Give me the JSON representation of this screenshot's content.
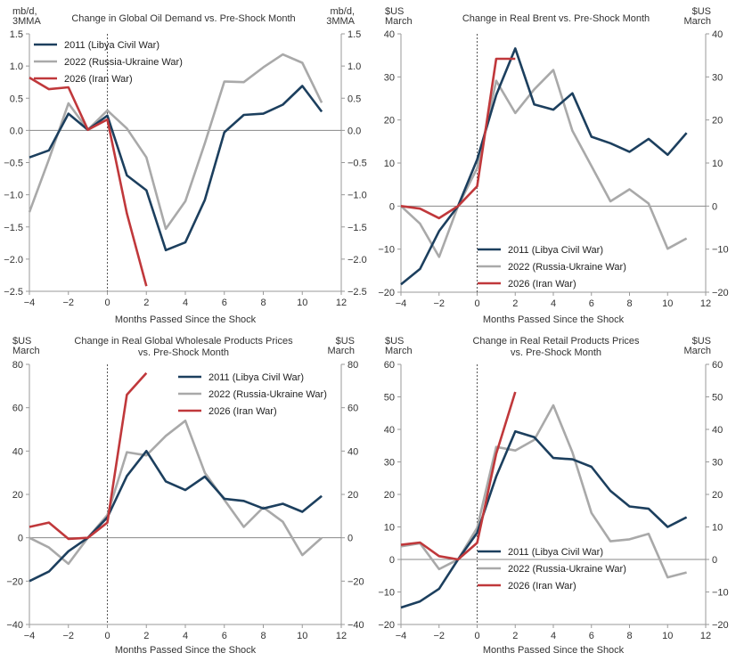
{
  "colors": {
    "s2011": "#1c3f5e",
    "s2022": "#a9a9a9",
    "s2026": "#c0383b",
    "axis": "#9a9a9a",
    "zero": "#888888",
    "shock": "#444444"
  },
  "chart_data": [
    {
      "type": "line",
      "title": [
        "Change in Global Oil Demand vs. Pre-Shock Month"
      ],
      "ylabel_left": [
        "mb/d,",
        "3MMA"
      ],
      "ylabel_right": [
        "mb/d,",
        "3MMA"
      ],
      "xlabel": "Months Passed Since the Shock",
      "xlim": [
        -4,
        12
      ],
      "ylim": [
        -2.5,
        1.5
      ],
      "xticks": [
        -4,
        -2,
        0,
        2,
        4,
        6,
        8,
        10,
        12
      ],
      "xtick_labels": [
        "−4",
        "−2",
        "0",
        "2",
        "4",
        "6",
        "8",
        "10",
        "12"
      ],
      "yticks": [
        -2.5,
        -2.0,
        -1.5,
        -1.0,
        -0.5,
        0.0,
        0.5,
        1.0,
        1.5
      ],
      "ytick_labels": [
        "−2.5",
        "−2.0",
        "−1.5",
        "−1.0",
        "−0.5",
        "0.0",
        "0.5",
        "1.0",
        "1.5"
      ],
      "legend_position": "top-left",
      "series": [
        {
          "name": "2011 (Libya Civil War)",
          "color_key": "s2011",
          "x": [
            -4,
            -3,
            -2,
            -1,
            0,
            1,
            2,
            3,
            4,
            5,
            6,
            7,
            8,
            9,
            10,
            11
          ],
          "values": [
            -0.42,
            -0.31,
            0.26,
            0.01,
            0.23,
            -0.7,
            -0.93,
            -1.86,
            -1.74,
            -1.08,
            -0.03,
            0.24,
            0.26,
            0.4,
            0.69,
            0.29
          ]
        },
        {
          "name": "2022 (Russia-Ukraine War)",
          "color_key": "s2022",
          "x": [
            -4,
            -3,
            -2,
            -1,
            0,
            1,
            2,
            3,
            4,
            5,
            6,
            7,
            8,
            9,
            10,
            11
          ],
          "values": [
            -1.27,
            -0.45,
            0.42,
            0.01,
            0.31,
            0.03,
            -0.42,
            -1.53,
            -1.1,
            -0.2,
            0.76,
            0.75,
            0.98,
            1.18,
            1.05,
            0.43
          ]
        },
        {
          "name": "2026 (Iran War)",
          "color_key": "s2026",
          "x": [
            -4,
            -3,
            -2,
            -1,
            0,
            1,
            2
          ],
          "values": [
            0.82,
            0.64,
            0.67,
            0.01,
            0.17,
            -1.29,
            -2.42
          ]
        }
      ]
    },
    {
      "type": "line",
      "title": [
        "Change in Real Brent vs. Pre-Shock Month"
      ],
      "ylabel_left": [
        "$US",
        "March"
      ],
      "ylabel_right": [
        "$US",
        "March"
      ],
      "xlabel": "Months Passed Since the Shock",
      "xlim": [
        -4,
        12
      ],
      "ylim": [
        -20,
        40
      ],
      "xticks": [
        -4,
        -2,
        0,
        2,
        4,
        6,
        8,
        10,
        12
      ],
      "xtick_labels": [
        "−4",
        "−2",
        "0",
        "2",
        "4",
        "6",
        "8",
        "10",
        "12"
      ],
      "yticks": [
        -20,
        -10,
        0,
        10,
        20,
        30,
        40
      ],
      "ytick_labels": [
        "−20",
        "−10",
        "0",
        "10",
        "20",
        "30",
        "40"
      ],
      "legend_position": "bottom-center",
      "series": [
        {
          "name": "2011 (Libya Civil War)",
          "color_key": "s2011",
          "x": [
            -4,
            -3,
            -2,
            -1,
            0,
            1,
            2,
            3,
            4,
            5,
            6,
            7,
            8,
            9,
            10,
            11
          ],
          "values": [
            -18.2,
            -14.6,
            -5.8,
            0.0,
            10.8,
            25.8,
            36.6,
            23.6,
            22.4,
            26.2,
            16.1,
            14.6,
            12.6,
            15.6,
            11.9,
            17.0
          ]
        },
        {
          "name": "2022 (Russia-Ukraine War)",
          "color_key": "s2022",
          "x": [
            -4,
            -3,
            -2,
            -1,
            0,
            1,
            2,
            3,
            4,
            5,
            6,
            7,
            8,
            9,
            10,
            11
          ],
          "values": [
            0.0,
            -4.1,
            -11.8,
            0.0,
            8.8,
            29.1,
            21.6,
            27.1,
            31.6,
            17.5,
            9.3,
            1.1,
            3.9,
            0.6,
            -9.9,
            -7.5
          ]
        },
        {
          "name": "2026 (Iran War)",
          "color_key": "s2026",
          "x": [
            -4,
            -3,
            -2,
            -1,
            0,
            1,
            2
          ],
          "values": [
            0.0,
            -0.6,
            -2.8,
            0.0,
            4.6,
            34.2,
            34.2
          ]
        }
      ]
    },
    {
      "type": "line",
      "title": [
        "Change in Real Global Wholesale Products Prices",
        "vs. Pre-Shock Month"
      ],
      "ylabel_left": [
        "$US",
        "March"
      ],
      "ylabel_right": [
        "$US",
        "March"
      ],
      "xlabel": "Months Passed Since the Shock",
      "xlim": [
        -4,
        12
      ],
      "ylim": [
        -40,
        80
      ],
      "xticks": [
        -4,
        -2,
        0,
        2,
        4,
        6,
        8,
        10,
        12
      ],
      "xtick_labels": [
        "−4",
        "−2",
        "0",
        "2",
        "4",
        "6",
        "8",
        "10",
        "12"
      ],
      "yticks": [
        -40,
        -20,
        0,
        20,
        40,
        60,
        80
      ],
      "ytick_labels": [
        "−40",
        "−20",
        "0",
        "20",
        "40",
        "60",
        "80"
      ],
      "legend_position": "top-right",
      "series": [
        {
          "name": "2011 (Libya Civil War)",
          "color_key": "s2011",
          "x": [
            -4,
            -3,
            -2,
            -1,
            0,
            1,
            2,
            3,
            4,
            5,
            6,
            7,
            8,
            9,
            10,
            11
          ],
          "values": [
            -20.0,
            -15.6,
            -6.2,
            0.0,
            9.4,
            28.5,
            40.0,
            26.0,
            22.0,
            28.2,
            18.0,
            17.0,
            13.5,
            15.7,
            12.0,
            19.3
          ]
        },
        {
          "name": "2022 (Russia-Ukraine War)",
          "color_key": "s2022",
          "x": [
            -4,
            -3,
            -2,
            -1,
            0,
            1,
            2,
            3,
            4,
            5,
            6,
            7,
            8,
            9,
            10,
            11
          ],
          "values": [
            0.0,
            -4.5,
            -12.0,
            0.0,
            10.5,
            39.5,
            38.0,
            47.0,
            54.0,
            30.0,
            17.5,
            5.0,
            14.0,
            7.4,
            -8.0,
            0.0
          ]
        },
        {
          "name": "2026 (Iran War)",
          "color_key": "s2026",
          "x": [
            -4,
            -3,
            -2,
            -1,
            0,
            1,
            2
          ],
          "values": [
            5.0,
            7.0,
            -0.5,
            0.0,
            7.0,
            66.0,
            76.0
          ]
        }
      ]
    },
    {
      "type": "line",
      "title": [
        "Change in Real Retail Products Prices",
        "vs. Pre-Shock Month"
      ],
      "ylabel_left": [
        "$US",
        "March"
      ],
      "ylabel_right": [
        "$US",
        "March"
      ],
      "xlabel": "Months Passed Since the Shock",
      "xlim": [
        -4,
        12
      ],
      "ylim": [
        -20,
        60
      ],
      "xticks": [
        -4,
        -2,
        0,
        2,
        4,
        6,
        8,
        10,
        12
      ],
      "xtick_labels": [
        "−4",
        "−2",
        "0",
        "2",
        "4",
        "6",
        "8",
        "10",
        "12"
      ],
      "yticks": [
        -20,
        -10,
        0,
        10,
        20,
        30,
        40,
        50,
        60
      ],
      "ytick_labels": [
        "−20",
        "−10",
        "0",
        "10",
        "20",
        "30",
        "40",
        "50",
        "60"
      ],
      "legend_position": "bottom-center",
      "series": [
        {
          "name": "2011 (Libya Civil War)",
          "color_key": "s2011",
          "x": [
            -4,
            -3,
            -2,
            -1,
            0,
            1,
            2,
            3,
            4,
            5,
            6,
            7,
            8,
            9,
            10,
            11
          ],
          "values": [
            -14.8,
            -12.9,
            -9.0,
            0.0,
            8.2,
            25.5,
            39.4,
            37.6,
            31.2,
            30.8,
            28.5,
            21.1,
            16.3,
            15.6,
            10.0,
            13.0
          ]
        },
        {
          "name": "2022 (Russia-Ukraine War)",
          "color_key": "s2022",
          "x": [
            -4,
            -3,
            -2,
            -1,
            0,
            1,
            2,
            3,
            4,
            5,
            6,
            7,
            8,
            9,
            10,
            11
          ],
          "values": [
            4.0,
            5.0,
            -3.0,
            0.0,
            9.7,
            34.6,
            33.5,
            36.8,
            47.4,
            33.0,
            14.3,
            5.6,
            6.2,
            7.9,
            -5.5,
            -4.0
          ]
        },
        {
          "name": "2026 (Iran War)",
          "color_key": "s2026",
          "x": [
            -4,
            -3,
            -2,
            -1,
            0,
            1,
            2
          ],
          "values": [
            4.5,
            5.2,
            1.0,
            0.0,
            5.1,
            32.5,
            51.5
          ]
        }
      ]
    }
  ]
}
